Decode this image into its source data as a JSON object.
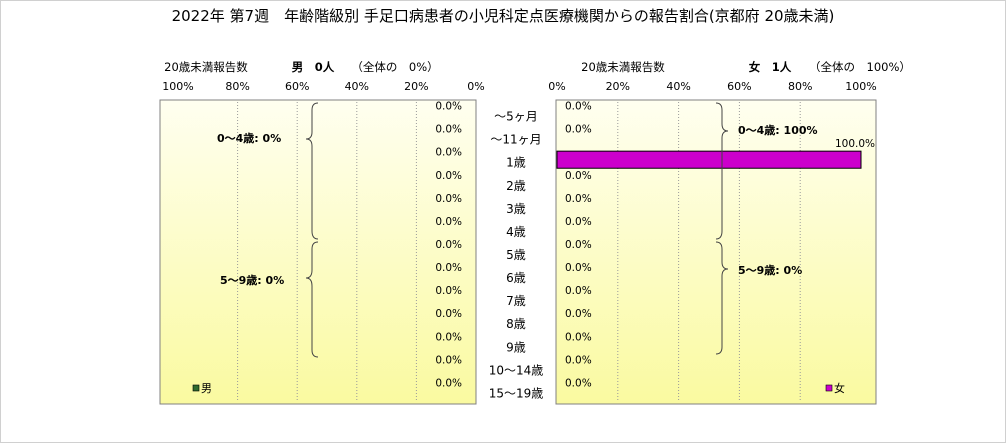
{
  "title": "2022年 第7週　年齢階級別 手足口病患者の小児科定点医療機関からの報告割合(京都府 20歳未満)",
  "left_panel": {
    "header_caption": "20歳未満報告数",
    "header_count": "男　0人",
    "header_share": "（全体の　0%）",
    "ticks": [
      "100%",
      "80%",
      "60%",
      "40%",
      "20%",
      "0%"
    ],
    "groups": [
      "0～4歳: 0%",
      "5～9歳: 0%"
    ],
    "legend": "男"
  },
  "right_panel": {
    "header_caption": "20歳未満報告数",
    "header_count": "女　1人",
    "header_share": "（全体の　100%）",
    "ticks": [
      "0%",
      "20%",
      "40%",
      "60%",
      "80%",
      "100%"
    ],
    "groups": [
      "0～4歳: 100%",
      "5～9歳: 0%"
    ],
    "legend": "女"
  },
  "colors": {
    "male": "#2e6b2e",
    "female": "#cc00cc",
    "panel_fill_light": "#fffff0",
    "panel_fill_dark": "#fafaa0"
  },
  "chart_data": {
    "type": "bar",
    "orientation": "horizontal",
    "title": "2022年 第7週　年齢階級別 手足口病患者の小児科定点医療機関からの報告割合(京都府 20歳未満)",
    "categories": [
      "～5ヶ月",
      "～11ヶ月",
      "1歳",
      "2歳",
      "3歳",
      "4歳",
      "5歳",
      "6歳",
      "7歳",
      "8歳",
      "9歳",
      "10～14歳",
      "15～19歳"
    ],
    "series": [
      {
        "name": "男",
        "value_labels": [
          "0.0%",
          "0.0%",
          "0.0%",
          "0.0%",
          "0.0%",
          "0.0%",
          "0.0%",
          "0.0%",
          "0.0%",
          "0.0%",
          "0.0%",
          "0.0%",
          "0.0%"
        ],
        "values": [
          0,
          0,
          0,
          0,
          0,
          0,
          0,
          0,
          0,
          0,
          0,
          0,
          0
        ]
      },
      {
        "name": "女",
        "value_labels": [
          "0.0%",
          "0.0%",
          "100.0%",
          "0.0%",
          "0.0%",
          "0.0%",
          "0.0%",
          "0.0%",
          "0.0%",
          "0.0%",
          "0.0%",
          "0.0%",
          "0.0%"
        ],
        "values": [
          0,
          0,
          100,
          0,
          0,
          0,
          0,
          0,
          0,
          0,
          0,
          0,
          0
        ]
      }
    ],
    "xlim": [
      0,
      100
    ],
    "grid": true,
    "legend_position": "bottom"
  }
}
